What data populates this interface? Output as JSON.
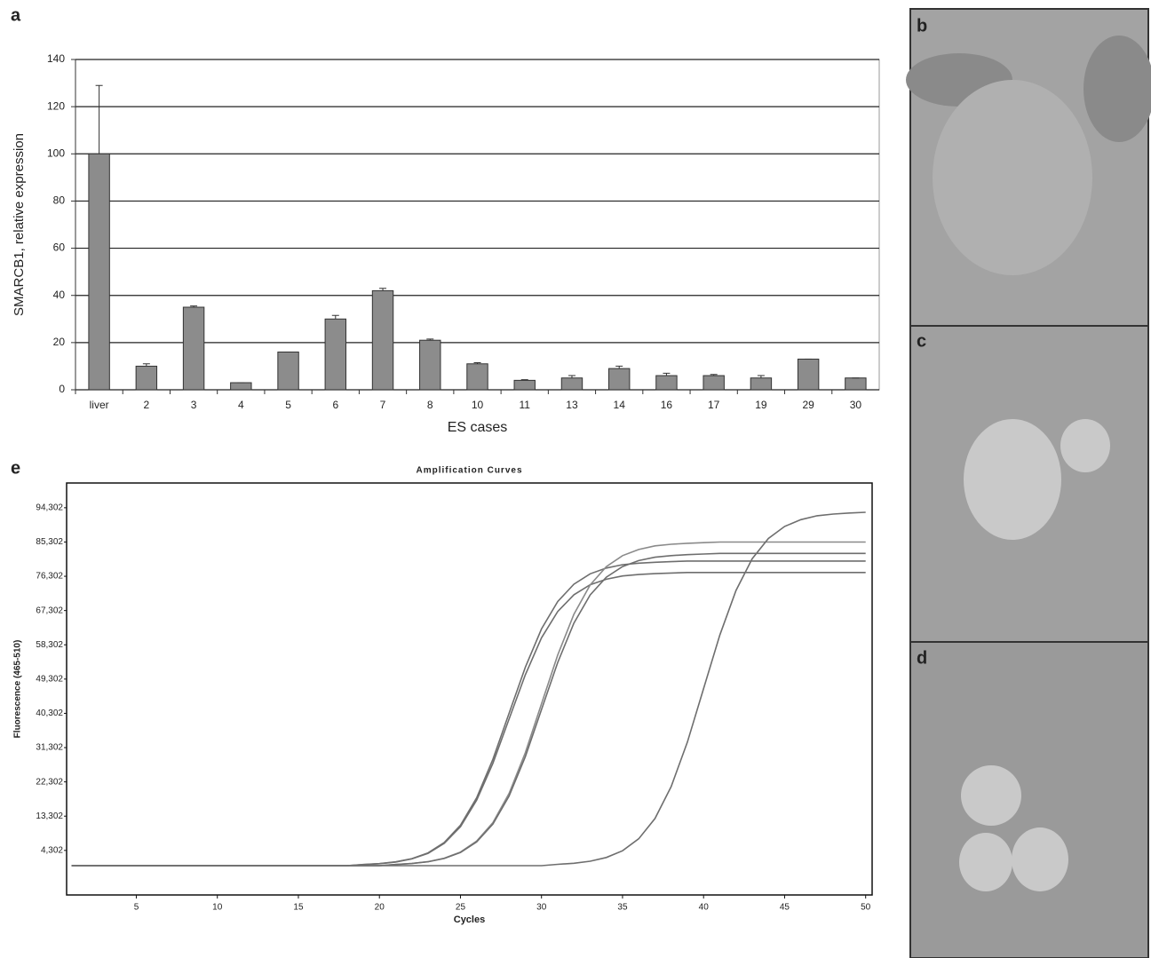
{
  "chart_data": [
    {
      "type": "bar",
      "panel_label": "a",
      "xlabel": "ES cases",
      "ylabel": "SMARCB1, relative expression",
      "categories": [
        "liver",
        "2",
        "3",
        "4",
        "5",
        "6",
        "7",
        "8",
        "10",
        "11",
        "13",
        "14",
        "16",
        "17",
        "19",
        "29",
        "30"
      ],
      "values": [
        100,
        10,
        35,
        3,
        16,
        30,
        42,
        21,
        11,
        4,
        5,
        9,
        6,
        6,
        5,
        13,
        5
      ],
      "errors": [
        29,
        1,
        0.5,
        0,
        0,
        1.5,
        1,
        0.5,
        0.5,
        0.3,
        1,
        1,
        1,
        0.5,
        1,
        0,
        0
      ],
      "color": "#8c8c8c",
      "ylim": [
        0,
        140
      ],
      "yticks": [
        0,
        20,
        40,
        60,
        80,
        100,
        120,
        140
      ],
      "grid": true
    },
    {
      "type": "line",
      "panel_label": "e",
      "title": "Amplification Curves",
      "xlabel": "Cycles",
      "ylabel": "Fluorescence (465-510)",
      "x": [
        1,
        2,
        3,
        4,
        5,
        6,
        7,
        8,
        9,
        10,
        11,
        12,
        13,
        14,
        15,
        16,
        17,
        18,
        19,
        20,
        21,
        22,
        23,
        24,
        25,
        26,
        27,
        28,
        29,
        30,
        31,
        32,
        33,
        34,
        35,
        36,
        37,
        38,
        39,
        40,
        41,
        42,
        43,
        44,
        45,
        46,
        47,
        48,
        49,
        50
      ],
      "xlim": [
        0.7,
        50.4
      ],
      "xticks": [
        5,
        10,
        15,
        20,
        25,
        30,
        35,
        40,
        45,
        50
      ],
      "ylim": [
        -7400,
        100800
      ],
      "yticks": [
        {
          "value": 4302,
          "label": "4,302"
        },
        {
          "value": 13302,
          "label": "13,302"
        },
        {
          "value": 22302,
          "label": "22,302"
        },
        {
          "value": 31302,
          "label": "31,302"
        },
        {
          "value": 40302,
          "label": "40,302"
        },
        {
          "value": 49302,
          "label": "49,302"
        },
        {
          "value": 58302,
          "label": "58,302"
        },
        {
          "value": 67302,
          "label": "67,302"
        },
        {
          "value": 76302,
          "label": "76,302"
        },
        {
          "value": 85302,
          "label": "85,302"
        },
        {
          "value": 94302,
          "label": "94,302"
        }
      ],
      "series": [
        {
          "color": "#6e6e6e",
          "values": [
            300,
            300,
            300,
            300,
            300,
            300,
            300,
            300,
            300,
            300,
            300,
            300,
            300,
            300,
            300,
            300,
            300,
            300,
            577,
            816,
            1255,
            2071,
            3534,
            6152,
            10541,
            17471,
            27173,
            38800,
            50427,
            60129,
            67059,
            71448,
            74066,
            75529,
            76376,
            76761,
            76992,
            77146,
            77300,
            77300,
            77300,
            77300,
            77300,
            77300,
            77300,
            77300,
            77300,
            77300,
            77300,
            77300
          ]
        },
        {
          "color": "#6e6e6e",
          "values": [
            300,
            300,
            300,
            300,
            300,
            300,
            300,
            300,
            300,
            300,
            300,
            300,
            300,
            300,
            300,
            300,
            300,
            300,
            588,
            836,
            1292,
            2140,
            3660,
            6380,
            10940,
            18140,
            28220,
            40300,
            52380,
            62460,
            69660,
            74220,
            76940,
            78460,
            79340,
            79740,
            79980,
            80140,
            80300,
            80300,
            80300,
            80300,
            80300,
            80300,
            80300,
            80300,
            80300,
            80300,
            80300,
            80300
          ]
        },
        {
          "color": "#8a8a8a",
          "values": [
            300,
            300,
            300,
            300,
            300,
            300,
            300,
            300,
            300,
            300,
            300,
            300,
            300,
            300,
            300,
            300,
            300,
            300,
            300,
            300,
            606,
            870,
            1354,
            2255,
            3870,
            6760,
            11605,
            19255,
            29965,
            42800,
            55635,
            66345,
            73995,
            78840,
            81730,
            83345,
            84280,
            84705,
            84960,
            85130,
            85300,
            85300,
            85300,
            85300,
            85300,
            85300,
            85300,
            85300,
            85300,
            85300
          ]
        },
        {
          "color": "#6e6e6e",
          "values": [
            300,
            300,
            300,
            300,
            300,
            300,
            300,
            300,
            300,
            300,
            300,
            300,
            300,
            300,
            300,
            300,
            300,
            300,
            300,
            300,
            595,
            849,
            1317,
            2186,
            3744,
            6532,
            11206,
            18586,
            28918,
            41300,
            53682,
            64014,
            71394,
            76068,
            78856,
            80414,
            81316,
            81726,
            81972,
            82136,
            82300,
            82300,
            82300,
            82300,
            82300,
            82300,
            82300,
            82300,
            82300,
            82300
          ]
        },
        {
          "color": "#6e6e6e",
          "values": [
            300,
            300,
            300,
            300,
            300,
            300,
            300,
            300,
            300,
            300,
            300,
            300,
            300,
            300,
            300,
            300,
            300,
            300,
            300,
            300,
            300,
            300,
            300,
            300,
            300,
            300,
            300,
            300,
            300,
            300,
            635,
            923,
            1453,
            2439,
            4206,
            7368,
            12669,
            21039,
            32757,
            46800,
            60843,
            72561,
            80931,
            86232,
            89394,
            91161,
            92184,
            92649,
            92928,
            93114
          ]
        }
      ]
    }
  ],
  "photo_panels": {
    "labels": [
      "b",
      "c",
      "d"
    ]
  }
}
